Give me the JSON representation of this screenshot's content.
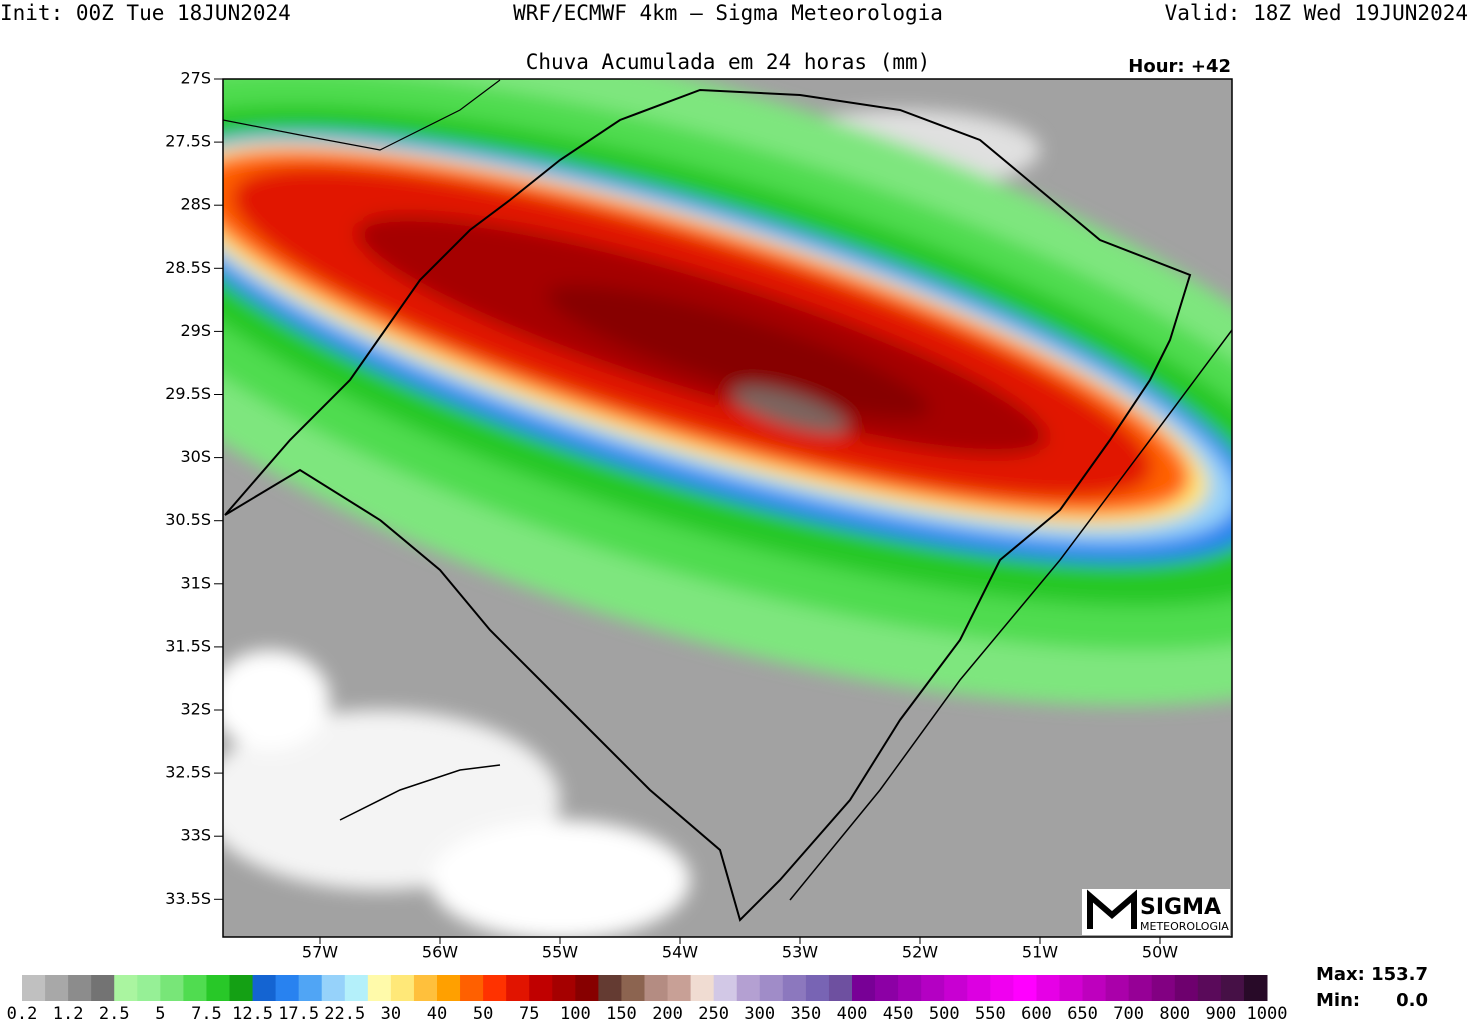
{
  "header": {
    "init": "Init: 00Z Tue 18JUN2024",
    "model": "WRF/ECMWF 4km — Sigma Meteorologia",
    "valid": "Valid: 18Z Wed 19JUN2024",
    "title": "Chuva Acumulada em 24 horas (mm)",
    "hour": "Hour: +42"
  },
  "map": {
    "lat_labels": [
      "27S",
      "27.5S",
      "28S",
      "28.5S",
      "29S",
      "29.5S",
      "30S",
      "30.5S",
      "31S",
      "31.5S",
      "32S",
      "32.5S",
      "33S",
      "33.5S"
    ],
    "lon_labels": [
      "57W",
      "56W",
      "55W",
      "54W",
      "53W",
      "52W",
      "51W",
      "50W"
    ],
    "logo": {
      "name": "SIGMA",
      "sub": "METEOROLOGIA"
    }
  },
  "colorbar": {
    "labels": [
      "0.2",
      "1.2",
      "2.5",
      "5",
      "7.5",
      "12.5",
      "17.5",
      "22.5",
      "30",
      "40",
      "50",
      "75",
      "100",
      "150",
      "200",
      "250",
      "300",
      "350",
      "400",
      "450",
      "500",
      "550",
      "600",
      "650",
      "700",
      "800",
      "900",
      "1000"
    ],
    "colors": [
      "#c0c0c0",
      "#a8a8a8",
      "#8c8c8c",
      "#737373",
      "#aaf5a0",
      "#96f096",
      "#78e678",
      "#50dc50",
      "#28c828",
      "#14a014",
      "#1464d2",
      "#2882f0",
      "#50a5f5",
      "#96d2fa",
      "#b4f0fa",
      "#fffaaa",
      "#ffe878",
      "#ffc03c",
      "#ffa000",
      "#ff6000",
      "#ff3200",
      "#e11400",
      "#c00000",
      "#a50000",
      "#870000",
      "#643b32",
      "#8c6450",
      "#b48c82",
      "#c8a096",
      "#f0dcd2",
      "#d2c8e6",
      "#b4a0d2",
      "#a08cc8",
      "#8c78be",
      "#7864b4",
      "#6e50a0",
      "#780096",
      "#8c00a5",
      "#a000b4",
      "#b400c3",
      "#c800d2",
      "#dc00e1",
      "#f000f0",
      "#ff00ff",
      "#e600e6",
      "#d200d2",
      "#be00be",
      "#aa00aa",
      "#960096",
      "#820082",
      "#6e006e",
      "#5a0a5a",
      "#461046",
      "#280a28"
    ]
  },
  "stats": {
    "max_label": "Max:",
    "max": "153.7",
    "min_label": "Min:",
    "min": "0.0"
  }
}
